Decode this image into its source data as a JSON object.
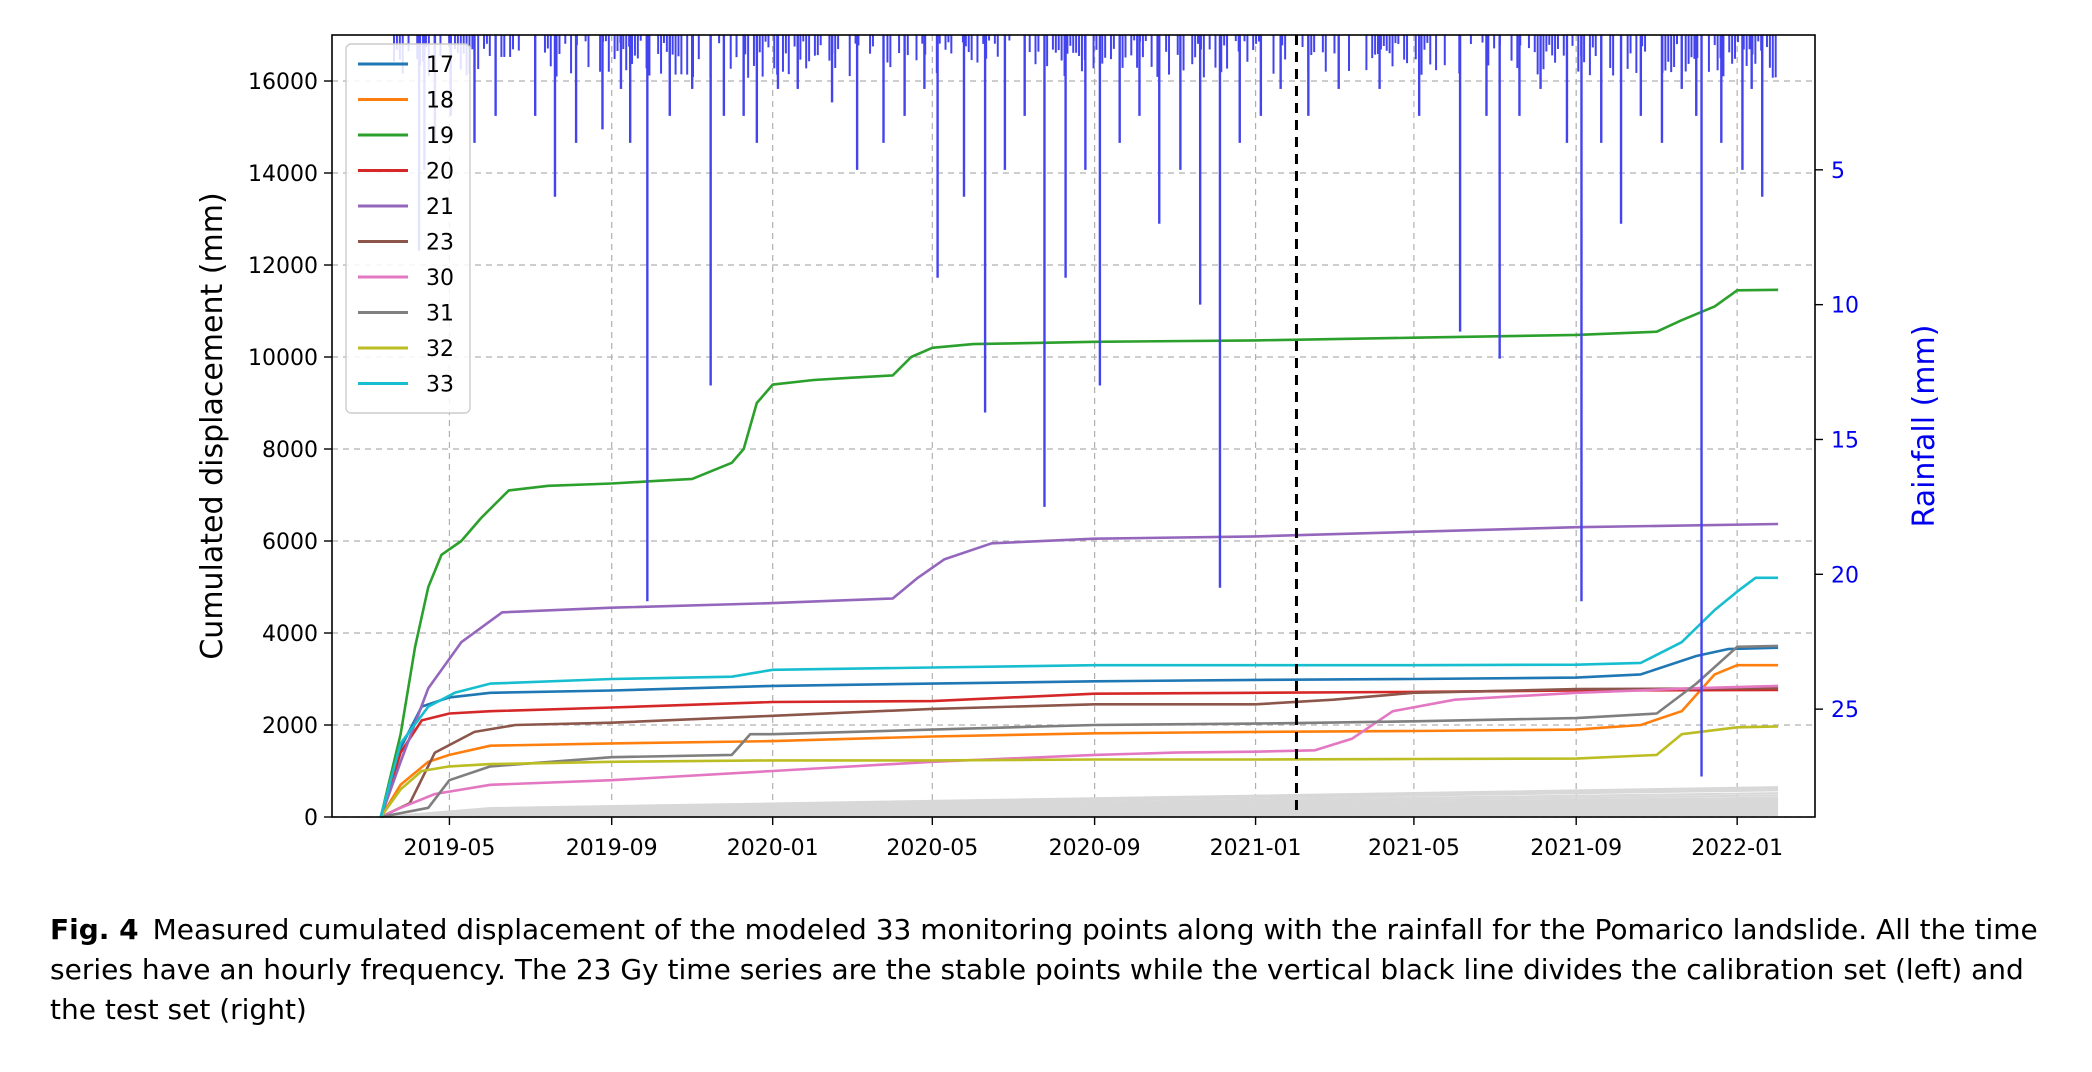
{
  "chart_data": {
    "type": "line",
    "ylabel": "Cumulated displacement (mm)",
    "ylabel_right": "Rainfall (mm)",
    "ylim": [
      0,
      17000
    ],
    "y_ticks": [
      0,
      2000,
      4000,
      6000,
      8000,
      10000,
      12000,
      14000,
      16000
    ],
    "y_right_inverted": true,
    "y_right_lim": [
      0,
      29
    ],
    "y_right_ticks": [
      5,
      10,
      15,
      20,
      25
    ],
    "x_range": [
      "2019-02-01",
      "2022-03-01"
    ],
    "x_ticks": [
      "2019-05",
      "2019-09",
      "2020-01",
      "2020-05",
      "2020-09",
      "2021-01",
      "2021-05",
      "2021-09",
      "2022-01"
    ],
    "grid": true,
    "legend_position": "top-left",
    "split_line": "2021-02-01",
    "series": [
      {
        "name": "17",
        "color": "#1f77b4",
        "points": [
          [
            "2019-03-10",
            0
          ],
          [
            "2019-03-25",
            1500
          ],
          [
            "2019-04-10",
            2400
          ],
          [
            "2019-05-01",
            2600
          ],
          [
            "2019-06-01",
            2700
          ],
          [
            "2019-09-01",
            2750
          ],
          [
            "2020-01-01",
            2850
          ],
          [
            "2020-05-01",
            2900
          ],
          [
            "2020-09-01",
            2950
          ],
          [
            "2021-01-01",
            2980
          ],
          [
            "2021-05-01",
            3000
          ],
          [
            "2021-09-01",
            3030
          ],
          [
            "2021-10-20",
            3100
          ],
          [
            "2021-12-01",
            3500
          ],
          [
            "2021-12-25",
            3650
          ],
          [
            "2022-02-01",
            3680
          ]
        ]
      },
      {
        "name": "18",
        "color": "#ff7f0e",
        "points": [
          [
            "2019-03-10",
            0
          ],
          [
            "2019-03-25",
            700
          ],
          [
            "2019-04-15",
            1200
          ],
          [
            "2019-05-01",
            1350
          ],
          [
            "2019-06-01",
            1550
          ],
          [
            "2019-09-01",
            1600
          ],
          [
            "2020-01-01",
            1650
          ],
          [
            "2020-05-01",
            1750
          ],
          [
            "2020-09-01",
            1820
          ],
          [
            "2021-01-01",
            1850
          ],
          [
            "2021-05-01",
            1870
          ],
          [
            "2021-09-01",
            1900
          ],
          [
            "2021-10-20",
            2000
          ],
          [
            "2021-11-20",
            2300
          ],
          [
            "2021-12-15",
            3100
          ],
          [
            "2022-01-01",
            3300
          ],
          [
            "2022-02-01",
            3300
          ]
        ]
      },
      {
        "name": "19",
        "color": "#2ca02c",
        "points": [
          [
            "2019-03-10",
            0
          ],
          [
            "2019-03-25",
            1800
          ],
          [
            "2019-04-05",
            3700
          ],
          [
            "2019-04-15",
            5000
          ],
          [
            "2019-04-25",
            5700
          ],
          [
            "2019-05-10",
            6000
          ],
          [
            "2019-05-25",
            6500
          ],
          [
            "2019-06-15",
            7100
          ],
          [
            "2019-07-15",
            7200
          ],
          [
            "2019-09-01",
            7250
          ],
          [
            "2019-10-01",
            7300
          ],
          [
            "2019-11-01",
            7350
          ],
          [
            "2019-12-01",
            7700
          ],
          [
            "2019-12-10",
            8000
          ],
          [
            "2019-12-20",
            9000
          ],
          [
            "2020-01-01",
            9400
          ],
          [
            "2020-02-01",
            9500
          ],
          [
            "2020-03-01",
            9550
          ],
          [
            "2020-04-01",
            9600
          ],
          [
            "2020-04-15",
            10000
          ],
          [
            "2020-05-01",
            10200
          ],
          [
            "2020-06-01",
            10280
          ],
          [
            "2020-09-01",
            10330
          ],
          [
            "2021-01-01",
            10360
          ],
          [
            "2021-05-01",
            10420
          ],
          [
            "2021-09-01",
            10480
          ],
          [
            "2021-11-01",
            10550
          ],
          [
            "2021-11-20",
            10800
          ],
          [
            "2021-12-15",
            11100
          ],
          [
            "2022-01-01",
            11450
          ],
          [
            "2022-02-01",
            11460
          ]
        ]
      },
      {
        "name": "20",
        "color": "#d62728",
        "points": [
          [
            "2019-03-10",
            0
          ],
          [
            "2019-03-25",
            1400
          ],
          [
            "2019-04-10",
            2100
          ],
          [
            "2019-05-01",
            2250
          ],
          [
            "2019-06-01",
            2300
          ],
          [
            "2019-09-01",
            2380
          ],
          [
            "2020-01-01",
            2500
          ],
          [
            "2020-05-01",
            2520
          ],
          [
            "2020-09-01",
            2680
          ],
          [
            "2021-01-01",
            2700
          ],
          [
            "2021-05-01",
            2720
          ],
          [
            "2021-09-01",
            2750
          ],
          [
            "2022-02-01",
            2760
          ]
        ]
      },
      {
        "name": "21",
        "color": "#9467bd",
        "points": [
          [
            "2019-03-10",
            0
          ],
          [
            "2019-03-25",
            1200
          ],
          [
            "2019-04-15",
            2800
          ],
          [
            "2019-05-10",
            3800
          ],
          [
            "2019-06-10",
            4450
          ],
          [
            "2019-09-01",
            4550
          ],
          [
            "2020-01-01",
            4650
          ],
          [
            "2020-04-01",
            4750
          ],
          [
            "2020-04-20",
            5200
          ],
          [
            "2020-05-10",
            5600
          ],
          [
            "2020-06-15",
            5950
          ],
          [
            "2020-09-01",
            6050
          ],
          [
            "2021-01-01",
            6100
          ],
          [
            "2021-05-01",
            6200
          ],
          [
            "2021-09-01",
            6300
          ],
          [
            "2022-02-01",
            6370
          ]
        ]
      },
      {
        "name": "23",
        "color": "#8c564b",
        "points": [
          [
            "2019-03-10",
            0
          ],
          [
            "2019-04-01",
            300
          ],
          [
            "2019-04-20",
            1400
          ],
          [
            "2019-05-20",
            1850
          ],
          [
            "2019-06-20",
            2000
          ],
          [
            "2019-09-01",
            2050
          ],
          [
            "2020-01-01",
            2200
          ],
          [
            "2020-05-01",
            2350
          ],
          [
            "2020-09-01",
            2450
          ],
          [
            "2021-01-01",
            2450
          ],
          [
            "2021-03-01",
            2550
          ],
          [
            "2021-05-01",
            2700
          ],
          [
            "2021-09-01",
            2780
          ],
          [
            "2022-02-01",
            2800
          ]
        ]
      },
      {
        "name": "30",
        "color": "#e377c2",
        "points": [
          [
            "2019-03-10",
            0
          ],
          [
            "2019-03-25",
            200
          ],
          [
            "2019-04-20",
            500
          ],
          [
            "2019-06-01",
            700
          ],
          [
            "2019-09-01",
            800
          ],
          [
            "2020-01-01",
            1000
          ],
          [
            "2020-05-01",
            1200
          ],
          [
            "2020-09-01",
            1350
          ],
          [
            "2020-11-01",
            1400
          ],
          [
            "2021-01-01",
            1420
          ],
          [
            "2021-02-15",
            1450
          ],
          [
            "2021-03-15",
            1700
          ],
          [
            "2021-04-15",
            2300
          ],
          [
            "2021-06-01",
            2550
          ],
          [
            "2021-09-01",
            2700
          ],
          [
            "2021-12-01",
            2800
          ],
          [
            "2022-02-01",
            2850
          ]
        ]
      },
      {
        "name": "31",
        "color": "#7f7f7f",
        "points": [
          [
            "2019-03-10",
            0
          ],
          [
            "2019-04-15",
            200
          ],
          [
            "2019-05-01",
            800
          ],
          [
            "2019-06-01",
            1100
          ],
          [
            "2019-09-01",
            1300
          ],
          [
            "2019-12-01",
            1350
          ],
          [
            "2019-12-15",
            1800
          ],
          [
            "2020-01-01",
            1800
          ],
          [
            "2020-05-01",
            1900
          ],
          [
            "2020-09-01",
            2000
          ],
          [
            "2021-01-01",
            2030
          ],
          [
            "2021-05-01",
            2080
          ],
          [
            "2021-09-01",
            2150
          ],
          [
            "2021-11-01",
            2250
          ],
          [
            "2021-12-01",
            2900
          ],
          [
            "2022-01-01",
            3700
          ],
          [
            "2022-02-01",
            3720
          ]
        ]
      },
      {
        "name": "32",
        "color": "#bcbd22",
        "points": [
          [
            "2019-03-10",
            0
          ],
          [
            "2019-03-25",
            600
          ],
          [
            "2019-04-10",
            1000
          ],
          [
            "2019-05-01",
            1100
          ],
          [
            "2019-06-01",
            1150
          ],
          [
            "2019-09-01",
            1200
          ],
          [
            "2020-01-01",
            1230
          ],
          [
            "2020-05-01",
            1230
          ],
          [
            "2020-09-01",
            1250
          ],
          [
            "2021-01-01",
            1250
          ],
          [
            "2021-05-01",
            1260
          ],
          [
            "2021-09-01",
            1270
          ],
          [
            "2021-11-01",
            1350
          ],
          [
            "2021-11-20",
            1800
          ],
          [
            "2022-01-01",
            1950
          ],
          [
            "2022-02-01",
            1970
          ]
        ]
      },
      {
        "name": "33",
        "color": "#17becf",
        "points": [
          [
            "2019-03-10",
            0
          ],
          [
            "2019-03-25",
            1600
          ],
          [
            "2019-04-15",
            2400
          ],
          [
            "2019-05-05",
            2700
          ],
          [
            "2019-06-01",
            2900
          ],
          [
            "2019-09-01",
            3000
          ],
          [
            "2019-12-01",
            3050
          ],
          [
            "2020-01-01",
            3200
          ],
          [
            "2020-05-01",
            3250
          ],
          [
            "2020-09-01",
            3300
          ],
          [
            "2021-01-01",
            3300
          ],
          [
            "2021-05-01",
            3300
          ],
          [
            "2021-09-01",
            3310
          ],
          [
            "2021-10-20",
            3350
          ],
          [
            "2021-11-20",
            3800
          ],
          [
            "2021-12-15",
            4500
          ],
          [
            "2022-01-01",
            4900
          ],
          [
            "2022-01-15",
            5200
          ],
          [
            "2022-02-01",
            5200
          ]
        ]
      }
    ],
    "stable_series": {
      "color": "#d8d8d8",
      "final_values": [
        650,
        620,
        580,
        520,
        470,
        420,
        380,
        350,
        320,
        300,
        270,
        250,
        230,
        210,
        190,
        170,
        150,
        130,
        110,
        90,
        70,
        55,
        40
      ]
    },
    "rainfall": {
      "color": "#4444ee",
      "events": [
        [
          "2019-04-08",
          8
        ],
        [
          "2019-04-12",
          5
        ],
        [
          "2019-04-20",
          4
        ],
        [
          "2019-05-02",
          3
        ],
        [
          "2019-05-20",
          4
        ],
        [
          "2019-06-05",
          3
        ],
        [
          "2019-07-05",
          3
        ],
        [
          "2019-07-20",
          6
        ],
        [
          "2019-08-05",
          4
        ],
        [
          "2019-08-25",
          3.5
        ],
        [
          "2019-09-08",
          2
        ],
        [
          "2019-09-15",
          4
        ],
        [
          "2019-09-28",
          21
        ],
        [
          "2019-10-15",
          3
        ],
        [
          "2019-11-01",
          2
        ],
        [
          "2019-11-15",
          13
        ],
        [
          "2019-11-25",
          3
        ],
        [
          "2019-12-10",
          3
        ],
        [
          "2019-12-20",
          4
        ],
        [
          "2020-01-05",
          2
        ],
        [
          "2020-01-20",
          2
        ],
        [
          "2020-02-15",
          2.5
        ],
        [
          "2020-03-05",
          5
        ],
        [
          "2020-03-25",
          4
        ],
        [
          "2020-04-10",
          3
        ],
        [
          "2020-04-25",
          2
        ],
        [
          "2020-05-05",
          9
        ],
        [
          "2020-05-25",
          6
        ],
        [
          "2020-06-10",
          14
        ],
        [
          "2020-06-25",
          5
        ],
        [
          "2020-07-10",
          3
        ],
        [
          "2020-07-25",
          17.5
        ],
        [
          "2020-08-10",
          9
        ],
        [
          "2020-08-25",
          5
        ],
        [
          "2020-09-05",
          13
        ],
        [
          "2020-09-20",
          4
        ],
        [
          "2020-10-05",
          3
        ],
        [
          "2020-10-20",
          7
        ],
        [
          "2020-11-05",
          5
        ],
        [
          "2020-11-20",
          10
        ],
        [
          "2020-12-05",
          20.5
        ],
        [
          "2020-12-20",
          4
        ],
        [
          "2021-01-05",
          3
        ],
        [
          "2021-01-20",
          2
        ],
        [
          "2021-02-10",
          3
        ],
        [
          "2021-03-05",
          2
        ],
        [
          "2021-04-05",
          2
        ],
        [
          "2021-05-05",
          3
        ],
        [
          "2021-06-05",
          11
        ],
        [
          "2021-06-25",
          3
        ],
        [
          "2021-07-05",
          12
        ],
        [
          "2021-07-20",
          3
        ],
        [
          "2021-08-05",
          2
        ],
        [
          "2021-08-25",
          4
        ],
        [
          "2021-09-05",
          21
        ],
        [
          "2021-09-20",
          4
        ],
        [
          "2021-10-05",
          7
        ],
        [
          "2021-10-20",
          3
        ],
        [
          "2021-11-05",
          4
        ],
        [
          "2021-11-20",
          2
        ],
        [
          "2021-12-01",
          3
        ],
        [
          "2021-12-05",
          27.5
        ],
        [
          "2021-12-20",
          4
        ],
        [
          "2022-01-05",
          5
        ],
        [
          "2022-01-12",
          2
        ],
        [
          "2022-01-20",
          6
        ]
      ]
    }
  },
  "caption": {
    "label": "Fig. 4",
    "text": "Measured cumulated displacement of the modeled 33 monitoring points along with the rainfall for the Pomarico landslide. All the time series have an hourly frequency. The 23 Gy time series are the stable points while the vertical black line divides the calibration set (left) and the test set (right)"
  }
}
